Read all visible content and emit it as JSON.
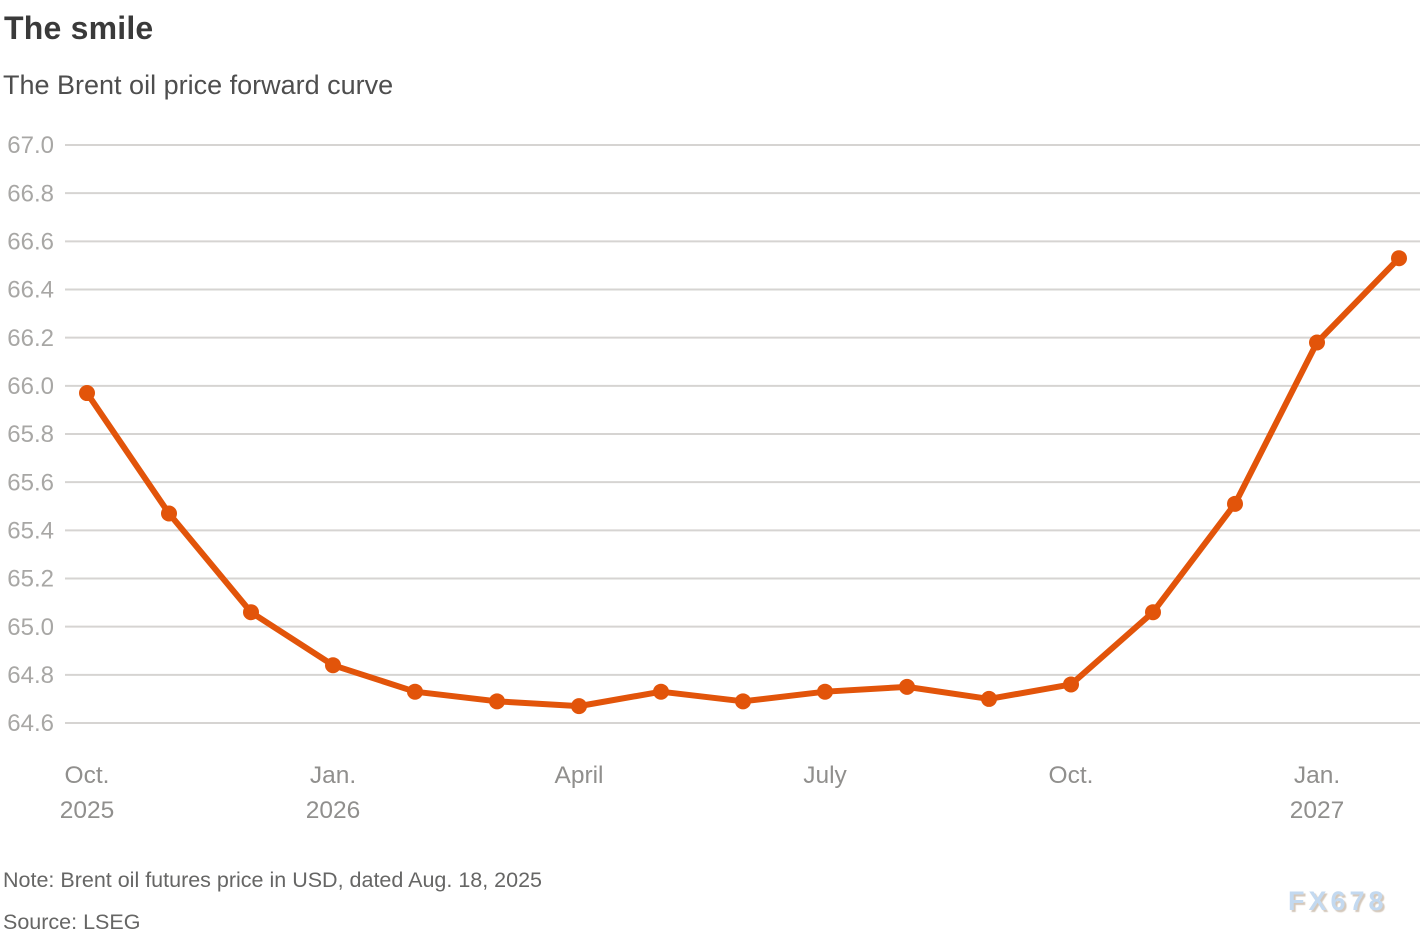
{
  "header": {
    "title": "The smile",
    "subtitle": "The Brent oil price forward curve"
  },
  "footer": {
    "note": "Note: Brent oil futures price in USD, dated Aug. 18, 2025",
    "source": "Source: LSEG",
    "watermark": "FX678"
  },
  "colors": {
    "line": "#e2540a",
    "marker": "#e2540a",
    "gridline": "#d6d4d2",
    "y_tick_label": "#a8a7a5",
    "x_tick_label": "#908f8d",
    "background": "#ffffff"
  },
  "chart_data": {
    "type": "line",
    "title": "The smile",
    "subtitle": "The Brent oil price forward curve",
    "series": [
      {
        "name": "Brent oil futures price (USD)",
        "values": [
          65.97,
          65.47,
          65.06,
          64.84,
          64.73,
          64.69,
          64.67,
          64.73,
          64.69,
          64.73,
          64.75,
          64.7,
          64.76,
          65.06,
          65.51,
          66.18,
          66.53
        ]
      }
    ],
    "x": [
      "Oct. 2025",
      "Nov. 2025",
      "Dec. 2025",
      "Jan. 2026",
      "Feb. 2026",
      "Mar. 2026",
      "Apr. 2026",
      "May 2026",
      "Jun. 2026",
      "Jul. 2026",
      "Aug. 2026",
      "Sep. 2026",
      "Oct. 2026",
      "Nov. 2026",
      "Dec. 2026",
      "Jan. 2027",
      "Feb. 2027"
    ],
    "x_tick_labels": [
      {
        "index": 0,
        "line1": "Oct.",
        "line2": "2025"
      },
      {
        "index": 3,
        "line1": "Jan.",
        "line2": "2026"
      },
      {
        "index": 6,
        "line1": "April",
        "line2": ""
      },
      {
        "index": 9,
        "line1": "July",
        "line2": ""
      },
      {
        "index": 12,
        "line1": "Oct.",
        "line2": ""
      },
      {
        "index": 15,
        "line1": "Jan.",
        "line2": "2027"
      }
    ],
    "y_ticks": [
      "67.0",
      "66.8",
      "66.6",
      "66.4",
      "66.2",
      "66.0",
      "65.8",
      "65.6",
      "65.4",
      "65.2",
      "65.0",
      "64.8",
      "64.6"
    ],
    "ylim": [
      64.6,
      67.0
    ],
    "xlabel": "",
    "ylabel": "",
    "grid": "horizontal",
    "legend": "none",
    "marker": "circle"
  }
}
